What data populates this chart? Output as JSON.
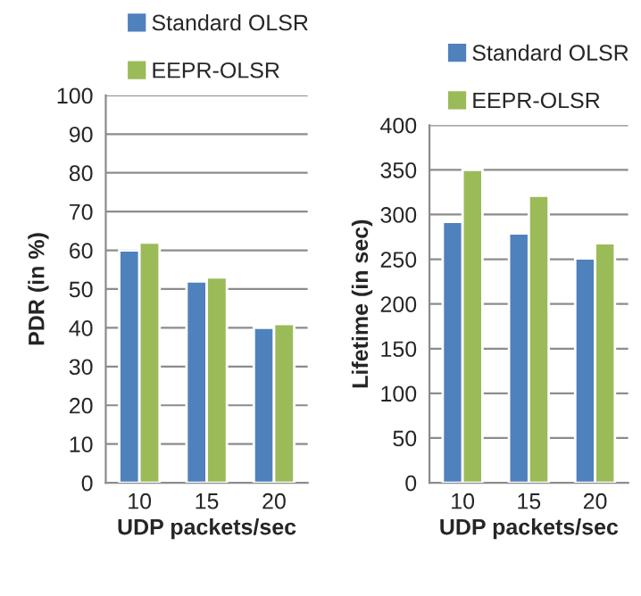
{
  "chart_data": [
    {
      "type": "bar",
      "categories": [
        "10",
        "15",
        "20"
      ],
      "xlabel": "UDP packets/sec",
      "ylabel": "PDR (in %)",
      "ylim": [
        0,
        100
      ],
      "yticks": [
        0,
        10,
        20,
        30,
        40,
        50,
        60,
        70,
        80,
        90,
        100
      ],
      "grid": "y",
      "legend": "top right",
      "series": [
        {
          "name": "Standard OLSR",
          "color": "#4f81bd",
          "values": [
            60,
            52,
            40
          ]
        },
        {
          "name": "EEPR-OLSR",
          "color": "#9bbb59",
          "values": [
            62,
            53,
            41
          ]
        }
      ]
    },
    {
      "type": "bar",
      "categories": [
        "10",
        "15",
        "20"
      ],
      "xlabel": "UDP packets/sec",
      "ylabel": "Lifetime (in sec)",
      "ylim": [
        0,
        400
      ],
      "yticks": [
        0,
        50,
        100,
        150,
        200,
        250,
        300,
        350,
        400
      ],
      "grid": "y",
      "legend": "top right",
      "series": [
        {
          "name": "Standard OLSR",
          "color": "#4f81bd",
          "values": [
            292,
            279,
            251
          ]
        },
        {
          "name": "EEPR-OLSR",
          "color": "#9bbb59",
          "values": [
            350,
            321,
            268
          ]
        }
      ]
    }
  ]
}
